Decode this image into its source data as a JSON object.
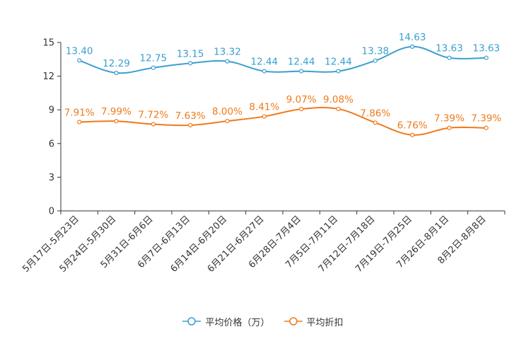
{
  "chart_data": {
    "type": "line",
    "title": "",
    "xlabel": "",
    "ylabel": "",
    "ylim": [
      0,
      15
    ],
    "yticks": [
      0,
      3,
      6,
      9,
      12,
      15
    ],
    "grid": false,
    "legend_position": "bottom",
    "categories": [
      "5月17日-5月23日",
      "5月24日-5月30日",
      "5月31日-6月6日",
      "6月7日-6月13日",
      "6月14日-6月20日",
      "6月21日-6月27日",
      "6月28日-7月4日",
      "7月5日-7月11日",
      "7月12日-7月18日",
      "7月19日-7月25日",
      "7月26日-8月1日",
      "8月2日-8月8日"
    ],
    "series": [
      {
        "name": "平均价格（万）",
        "color": "#3b9fd0",
        "values": [
          13.4,
          12.29,
          12.75,
          13.15,
          13.32,
          12.44,
          12.44,
          12.44,
          13.38,
          14.63,
          13.63,
          13.63
        ],
        "labels": [
          "13.40",
          "12.29",
          "12.75",
          "13.15",
          "13.32",
          "12.44",
          "12.44",
          "12.44",
          "13.38",
          "14.63",
          "13.63",
          "13.63"
        ]
      },
      {
        "name": "平均折扣",
        "color": "#f07a1a",
        "values": [
          7.91,
          7.99,
          7.72,
          7.63,
          8.0,
          8.41,
          9.07,
          9.08,
          7.86,
          6.76,
          7.39,
          7.39
        ],
        "labels": [
          "7.91%",
          "7.99%",
          "7.72%",
          "7.63%",
          "8.00%",
          "8.41%",
          "9.07%",
          "9.08%",
          "7.86%",
          "6.76%",
          "7.39%",
          "7.39%"
        ]
      }
    ]
  }
}
